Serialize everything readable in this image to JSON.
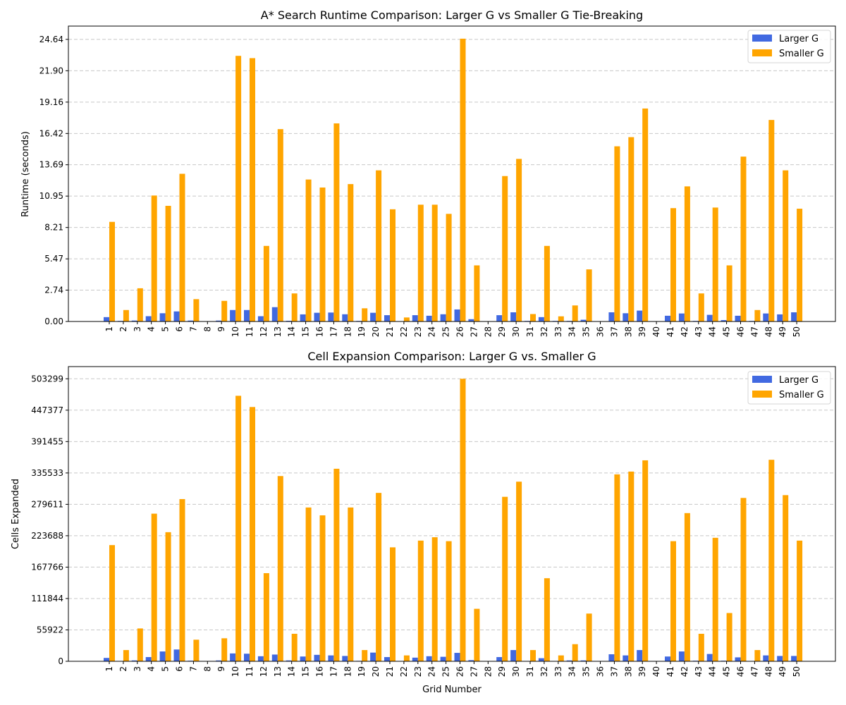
{
  "colors": {
    "larger_g": "#4169e1",
    "smaller_g": "#ffa500",
    "grid": "#c8c8c8"
  },
  "chart_data": [
    {
      "type": "bar",
      "title": "A* Search Runtime Comparison: Larger G vs Smaller G Tie-Breaking",
      "xlabel": "",
      "ylabel": "Runtime (seconds)",
      "categories": [
        "1",
        "2",
        "3",
        "4",
        "5",
        "6",
        "7",
        "8",
        "9",
        "10",
        "11",
        "12",
        "13",
        "14",
        "15",
        "16",
        "17",
        "18",
        "19",
        "20",
        "21",
        "22",
        "23",
        "24",
        "25",
        "26",
        "27",
        "28",
        "29",
        "30",
        "31",
        "32",
        "33",
        "34",
        "35",
        "36",
        "37",
        "38",
        "39",
        "40",
        "41",
        "42",
        "43",
        "44",
        "45",
        "46",
        "47",
        "48",
        "49",
        "50"
      ],
      "yticks": [
        "0.00",
        "2.74",
        "5.47",
        "8.21",
        "10.95",
        "13.69",
        "16.42",
        "19.16",
        "21.90",
        "24.64"
      ],
      "ylim": [
        0,
        25.8
      ],
      "grid": "y-dashed",
      "legend_position": "top-right",
      "series": [
        {
          "name": "Larger G",
          "values": [
            0.38,
            0.05,
            0.08,
            0.46,
            0.72,
            0.88,
            0.08,
            0.02,
            0.08,
            1.0,
            1.0,
            0.46,
            1.25,
            0.06,
            0.62,
            0.76,
            0.78,
            0.63,
            0.05,
            0.76,
            0.55,
            0.02,
            0.55,
            0.5,
            0.63,
            1.05,
            0.2,
            0.02,
            0.55,
            0.8,
            0.05,
            0.38,
            0.05,
            0.05,
            0.15,
            0.02,
            0.8,
            0.72,
            0.95,
            0.02,
            0.5,
            0.7,
            0.05,
            0.58,
            0.12,
            0.5,
            0.05,
            0.7,
            0.62,
            0.8
          ]
        },
        {
          "name": "Smaller G",
          "values": [
            8.7,
            1.0,
            2.9,
            11.0,
            10.1,
            12.9,
            1.95,
            0.02,
            1.8,
            23.2,
            23.0,
            6.6,
            16.8,
            2.45,
            12.4,
            11.7,
            17.3,
            12.0,
            1.15,
            13.2,
            9.8,
            0.35,
            10.2,
            10.2,
            9.4,
            24.7,
            4.9,
            0.02,
            12.7,
            14.2,
            0.65,
            6.6,
            0.45,
            1.4,
            4.55,
            0.02,
            15.3,
            16.1,
            18.6,
            0.02,
            9.9,
            11.8,
            2.45,
            9.95,
            4.9,
            14.4,
            1.0,
            17.6,
            13.2,
            9.85
          ]
        }
      ]
    },
    {
      "type": "bar",
      "title": "Cell Expansion Comparison: Larger G vs. Smaller G",
      "xlabel": "Grid Number",
      "ylabel": "Cells Expanded",
      "categories": [
        "1",
        "2",
        "3",
        "4",
        "5",
        "6",
        "7",
        "8",
        "9",
        "10",
        "11",
        "12",
        "13",
        "14",
        "15",
        "16",
        "17",
        "18",
        "19",
        "20",
        "21",
        "22",
        "23",
        "24",
        "25",
        "26",
        "27",
        "28",
        "29",
        "30",
        "31",
        "32",
        "33",
        "34",
        "35",
        "36",
        "37",
        "38",
        "39",
        "40",
        "41",
        "42",
        "43",
        "44",
        "45",
        "46",
        "47",
        "48",
        "49",
        "50"
      ],
      "yticks": [
        "0",
        "55922",
        "111844",
        "167766",
        "223688",
        "279611",
        "335533",
        "391455",
        "447377",
        "503299"
      ],
      "ylim": [
        0,
        525000
      ],
      "grid": "y-dashed",
      "legend_position": "top-right",
      "series": [
        {
          "name": "Larger G",
          "values": [
            6000,
            500,
            1500,
            7500,
            17500,
            21000,
            1000,
            200,
            1500,
            14000,
            13500,
            9000,
            12000,
            1500,
            8500,
            11500,
            10500,
            9500,
            800,
            15500,
            7500,
            300,
            6500,
            9000,
            8000,
            15000,
            2000,
            200,
            7500,
            20000,
            500,
            5500,
            500,
            1500,
            1500,
            200,
            12500,
            10500,
            20000,
            200,
            8500,
            17500,
            1000,
            13000,
            1000,
            7000,
            500,
            10500,
            9500,
            9500
          ]
        },
        {
          "name": "Smaller G",
          "values": [
            207000,
            20000,
            58500,
            263000,
            230000,
            289000,
            38500,
            200,
            41000,
            473000,
            453000,
            157000,
            330000,
            49000,
            274000,
            260000,
            343000,
            274000,
            20000,
            300000,
            203000,
            10500,
            215000,
            221000,
            214000,
            503299,
            93500,
            200,
            293000,
            320000,
            20000,
            148000,
            10500,
            30500,
            85000,
            200,
            333000,
            338000,
            358000,
            200,
            214000,
            264000,
            49000,
            220000,
            86000,
            291000,
            20000,
            359000,
            296000,
            215000
          ]
        }
      ]
    }
  ]
}
